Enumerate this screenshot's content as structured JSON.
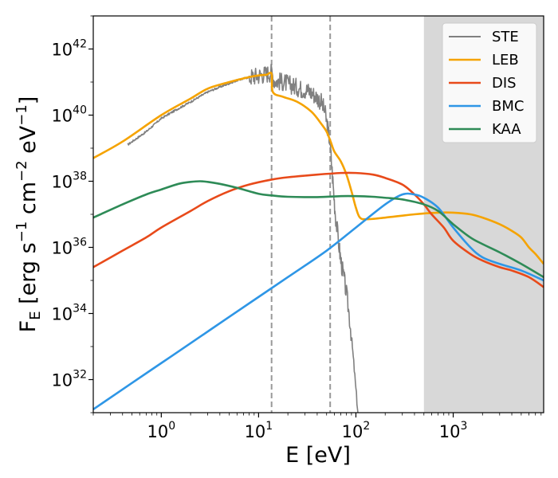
{
  "chart_data": {
    "type": "line",
    "title": "",
    "xlabel": "E [eV]",
    "ylabel": "F_E [erg s^-1 cm^-2 eV^-1]",
    "xscale": "log",
    "yscale": "log",
    "xlim": [
      0.2,
      8500
    ],
    "ylim": [
      1e+31,
      1e+43
    ],
    "x_ticks": [
      {
        "value": 1,
        "base": "10",
        "exp": "0"
      },
      {
        "value": 10,
        "base": "10",
        "exp": "1"
      },
      {
        "value": 100,
        "base": "10",
        "exp": "2"
      },
      {
        "value": 1000,
        "base": "10",
        "exp": "3"
      }
    ],
    "y_ticks": [
      {
        "value": 1e+32,
        "base": "10",
        "exp": "32"
      },
      {
        "value": 1e+34,
        "base": "10",
        "exp": "34"
      },
      {
        "value": 1e+36,
        "base": "10",
        "exp": "36"
      },
      {
        "value": 1e+38,
        "base": "10",
        "exp": "38"
      },
      {
        "value": 1e+40,
        "base": "10",
        "exp": "40"
      },
      {
        "value": 1e+42,
        "base": "10",
        "exp": "42"
      }
    ],
    "vlines": [
      13.6,
      54.4
    ],
    "shaded_region": {
      "xmin": 500,
      "xmax": 8500,
      "color": "#d8d8d8"
    },
    "legend_position": "top-right",
    "series": [
      {
        "name": "STE",
        "color": "#808080",
        "noisy": true,
        "x": [
          0.45,
          0.7,
          1.0,
          1.5,
          2.0,
          3.0,
          4.0,
          6.0,
          8.0,
          10.0,
          12.0,
          13.6,
          14.5,
          18,
          22,
          27,
          32,
          38,
          44,
          48,
          50,
          52,
          54,
          56,
          58,
          60,
          62,
          65,
          68,
          70,
          73,
          76,
          80,
          85,
          90,
          95,
          100,
          105,
          110
        ],
        "y": [
          39.1,
          39.5,
          39.9,
          40.2,
          40.4,
          40.7,
          40.85,
          41.05,
          41.15,
          41.2,
          41.25,
          41.3,
          41.05,
          41.0,
          40.9,
          40.8,
          40.75,
          40.6,
          40.4,
          40.1,
          39.8,
          39.5,
          39.2,
          38.6,
          38.0,
          37.4,
          36.9,
          36.4,
          35.9,
          35.6,
          35.3,
          35.0,
          34.6,
          34.0,
          33.3,
          32.5,
          31.7,
          31.0,
          30.3
        ]
      },
      {
        "name": "LEB",
        "color": "#f5a300",
        "x": [
          0.2,
          0.4,
          1.0,
          2.0,
          3.0,
          5.0,
          8.0,
          10.0,
          12.0,
          13.6,
          14.0,
          18,
          25,
          35,
          45,
          50,
          55,
          60,
          70,
          80,
          90,
          100,
          110,
          130,
          200,
          400,
          700,
          1000,
          1500,
          2000,
          3000,
          4000,
          5000,
          6000,
          7000,
          8500
        ],
        "y": [
          38.7,
          39.2,
          40.0,
          40.5,
          40.8,
          41.0,
          41.15,
          41.2,
          41.22,
          41.25,
          40.7,
          40.55,
          40.4,
          40.1,
          39.7,
          39.5,
          39.2,
          38.9,
          38.6,
          38.2,
          37.7,
          37.2,
          36.9,
          36.85,
          36.9,
          37.0,
          37.05,
          37.05,
          37.0,
          36.9,
          36.7,
          36.5,
          36.3,
          36.0,
          35.8,
          35.5
        ]
      },
      {
        "name": "DIS",
        "color": "#e84a1a",
        "x": [
          0.2,
          0.4,
          0.7,
          1.0,
          2.0,
          3.0,
          5.0,
          8.0,
          13.6,
          20,
          40,
          70,
          100,
          150,
          200,
          300,
          400,
          500,
          600,
          800,
          1000,
          1500,
          2000,
          3000,
          4000,
          6000,
          8500
        ],
        "y": [
          35.4,
          35.9,
          36.3,
          36.6,
          37.1,
          37.4,
          37.7,
          37.9,
          38.05,
          38.12,
          38.2,
          38.25,
          38.25,
          38.2,
          38.1,
          37.9,
          37.6,
          37.3,
          37.0,
          36.6,
          36.2,
          35.8,
          35.6,
          35.4,
          35.3,
          35.1,
          34.8
        ]
      },
      {
        "name": "BMC",
        "color": "#2e96e6",
        "x": [
          0.2,
          0.5,
          1.0,
          2.0,
          5.0,
          10.0,
          20,
          50,
          100,
          200,
          300,
          400,
          500,
          700,
          1000,
          1500,
          2000,
          3000,
          5000,
          8500
        ],
        "y": [
          31.1,
          31.9,
          32.5,
          33.1,
          33.9,
          34.5,
          35.1,
          35.9,
          36.6,
          37.3,
          37.6,
          37.6,
          37.5,
          37.2,
          36.6,
          36.0,
          35.7,
          35.5,
          35.3,
          35.0
        ]
      },
      {
        "name": "KAA",
        "color": "#2e8b57",
        "x": [
          0.2,
          0.4,
          0.7,
          1.0,
          1.5,
          2.0,
          2.5,
          3.0,
          4.0,
          6.0,
          10.0,
          13.6,
          20,
          40,
          70,
          100,
          150,
          200,
          300,
          500,
          700,
          1000,
          1500,
          2000,
          3000,
          5000,
          8500
        ],
        "y": [
          36.9,
          37.3,
          37.6,
          37.75,
          37.92,
          37.98,
          38.0,
          37.98,
          37.92,
          37.8,
          37.62,
          37.57,
          37.53,
          37.52,
          37.55,
          37.55,
          37.53,
          37.5,
          37.45,
          37.3,
          37.1,
          36.7,
          36.3,
          36.1,
          35.85,
          35.5,
          35.1
        ]
      }
    ]
  }
}
